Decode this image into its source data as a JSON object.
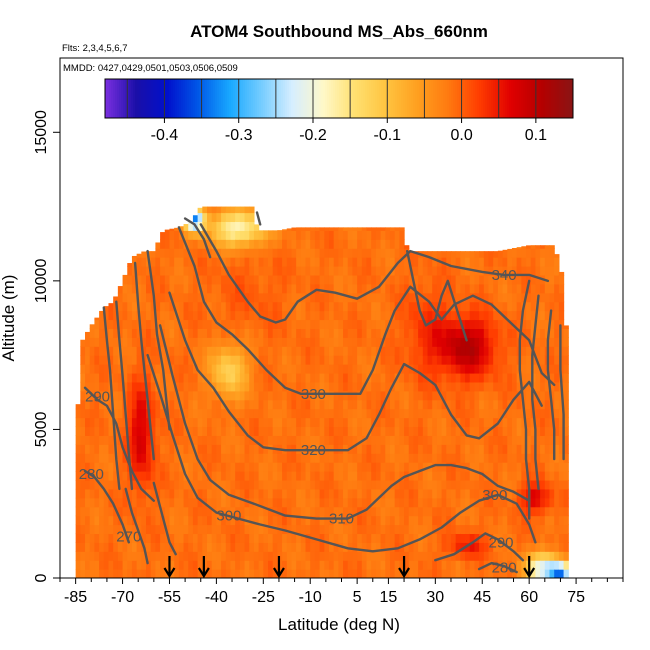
{
  "chart_data": {
    "type": "heatmap",
    "title": "ATOM4 Southbound MS_Abs_660nm",
    "flights_note": "Flts: 2,3,4,5,6,7",
    "dates_note": "MMDD: 0427,0429,0501,0503,0506,0509",
    "xlabel": "Latitude (deg N)",
    "ylabel": "Altitude (m)",
    "xlim": [
      -90,
      90
    ],
    "ylim": [
      0,
      17500
    ],
    "x_tick_labels": [
      "-85",
      "-70",
      "-55",
      "-40",
      "-25",
      "-10",
      "5",
      "15",
      "30",
      "45",
      "60",
      "75"
    ],
    "x_tick_values": [
      -85,
      -70,
      -55,
      -40,
      -25,
      -10,
      5,
      15,
      30,
      45,
      60,
      75
    ],
    "y_tick_labels": [
      "0",
      "5000",
      "10000",
      "15000"
    ],
    "y_tick_values": [
      0,
      5000,
      10000,
      15000
    ],
    "colorbar": {
      "range": [
        -0.48,
        0.15
      ],
      "tick_labels": [
        "-0.4",
        "-0.3",
        "-0.2",
        "-0.1",
        "0.0",
        "0.1"
      ],
      "tick_values": [
        -0.4,
        -0.3,
        -0.2,
        -0.1,
        0.0,
        0.1
      ],
      "colors": [
        "#7b2fe0",
        "#1a0fa8",
        "#0010cc",
        "#0058e8",
        "#18a8ff",
        "#74ccff",
        "#d6eeff",
        "#fff8c8",
        "#ffe070",
        "#ffc440",
        "#ffa020",
        "#ff7a10",
        "#ff3c00",
        "#e00000",
        "#b40000",
        "#8a1414"
      ]
    },
    "arrow_latitudes": [
      -55,
      -44,
      -20,
      20,
      60
    ],
    "contour_levels": [
      {
        "label": "340",
        "lat": 52,
        "alt": 10200
      },
      {
        "label": "330",
        "lat": -9,
        "alt": 6200
      },
      {
        "label": "320",
        "lat": -9,
        "alt": 4300
      },
      {
        "label": "310",
        "lat": 0,
        "alt": 2000
      },
      {
        "label": "300",
        "lat": -36,
        "alt": 2100
      },
      {
        "label": "300",
        "lat": 49,
        "alt": 2800
      },
      {
        "label": "290",
        "lat": -78,
        "alt": 6100
      },
      {
        "label": "290",
        "lat": 51,
        "alt": 1200
      },
      {
        "label": "280",
        "lat": -80,
        "alt": 3500
      },
      {
        "label": "280",
        "lat": 52,
        "alt": 350
      },
      {
        "label": "270",
        "lat": -68,
        "alt": 1400
      }
    ],
    "field_notes": "Absorption mostly ~0.0 (orange) over the sampled curtain; strong positive (red, ~0.1) near 35-50N at 7-9 km and near 65S at 3-6 km; negative (blue, ~-0.2 to -0.35) near 40-25S above 11 km, near 45-35S at 6-8 km, and 50-70N near the surface."
  }
}
